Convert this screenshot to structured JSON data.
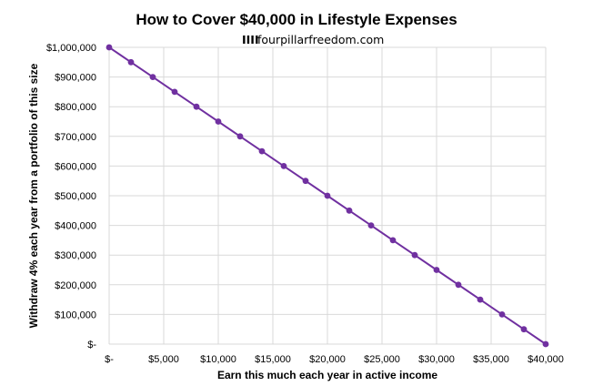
{
  "chart_data": {
    "type": "line",
    "title": "How to Cover $40,000 in Lifestyle Expenses",
    "subtitle": "fourpillarfreedom.com",
    "brand_mark": "IIII",
    "xlabel": "Earn this much each year in active income",
    "ylabel": "Withdraw 4% each year from a portfolio of this size",
    "xlim": [
      0,
      40000
    ],
    "ylim": [
      0,
      1000000
    ],
    "x_ticks": [
      0,
      5000,
      10000,
      15000,
      20000,
      25000,
      30000,
      35000,
      40000
    ],
    "x_tick_labels": [
      "$-",
      "$5,000",
      "$10,000",
      "$15,000",
      "$20,000",
      "$25,000",
      "$30,000",
      "$35,000",
      "$40,000"
    ],
    "y_ticks": [
      0,
      100000,
      200000,
      300000,
      400000,
      500000,
      600000,
      700000,
      800000,
      900000,
      1000000
    ],
    "y_tick_labels": [
      "$-",
      "$100,000",
      "$200,000",
      "$300,000",
      "$400,000",
      "$500,000",
      "$600,000",
      "$700,000",
      "$800,000",
      "$900,000",
      "$1,000,000"
    ],
    "grid": true,
    "legend": "none",
    "series": [
      {
        "color": "#7030a0",
        "x": [
          0,
          2000,
          4000,
          6000,
          8000,
          10000,
          12000,
          14000,
          16000,
          18000,
          20000,
          22000,
          24000,
          26000,
          28000,
          30000,
          32000,
          34000,
          36000,
          38000,
          40000
        ],
        "y": [
          1000000,
          950000,
          900000,
          850000,
          800000,
          750000,
          700000,
          650000,
          600000,
          550000,
          500000,
          450000,
          400000,
          350000,
          300000,
          250000,
          200000,
          150000,
          100000,
          50000,
          0
        ]
      }
    ]
  }
}
